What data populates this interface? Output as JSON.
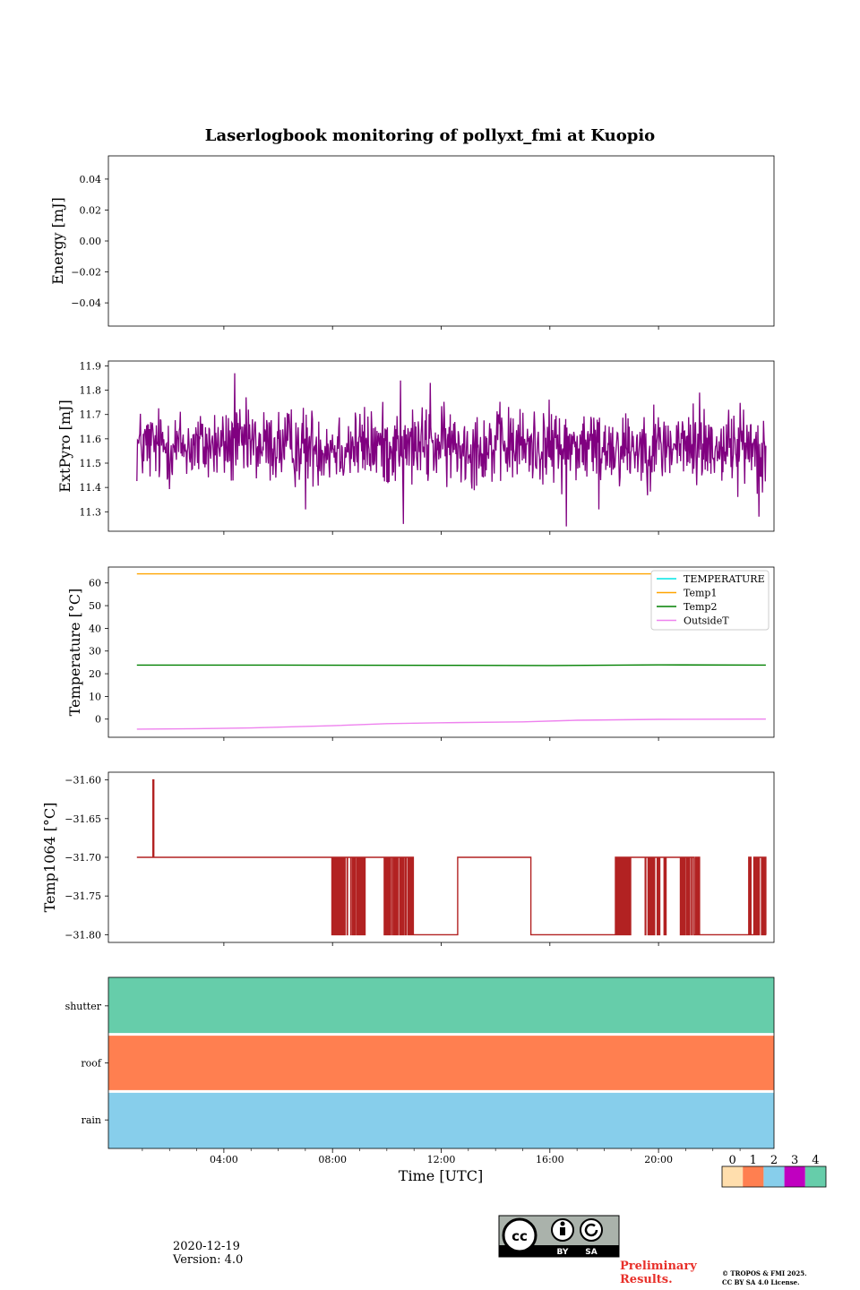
{
  "title": "Laserlogbook monitoring of pollyxt_fmi at Kuopio",
  "footer": {
    "date": "2020-12-19",
    "version": "Version: 4.0",
    "preliminary": "Preliminary",
    "results": "Results.",
    "copyright_line1": "© TROPOS & FMI 2025.",
    "copyright_line2": "CC BY SA 4.0 License.",
    "cc_badge": "CC BY SA",
    "cc_by": "BY",
    "cc_sa": "SA"
  },
  "chart_data": [
    {
      "id": "energy",
      "type": "line",
      "ylabel": "Energy [mJ]",
      "ylim": [
        -0.055,
        0.055
      ],
      "yticks": [
        0.04,
        0.02,
        0.0,
        -0.02,
        -0.04
      ],
      "ytick_labels": [
        "0.04",
        "0.02",
        "0.00",
        "−0.02",
        "−0.04"
      ],
      "series": []
    },
    {
      "id": "extpyro",
      "type": "line",
      "ylabel": "ExtPyro [mJ]",
      "ylim": [
        11.22,
        11.92
      ],
      "yticks": [
        11.9,
        11.8,
        11.7,
        11.6,
        11.5,
        11.4,
        11.3
      ],
      "ytick_labels": [
        "11.9",
        "11.8",
        "11.7",
        "11.6",
        "11.5",
        "11.4",
        "11.3"
      ],
      "series": [
        {
          "name": "ExtPyro",
          "color": "#800080",
          "mean": 11.57,
          "noise": 0.12,
          "x_range": [
            0.8,
            23.95
          ],
          "spikes": [
            [
              4.4,
              11.87
            ],
            [
              4.9,
              11.72
            ],
            [
              7.0,
              11.31
            ],
            [
              10.5,
              11.84
            ],
            [
              10.6,
              11.25
            ],
            [
              11.6,
              11.83
            ],
            [
              16.6,
              11.24
            ],
            [
              17.8,
              11.31
            ],
            [
              21.5,
              11.79
            ],
            [
              23.7,
              11.28
            ]
          ]
        }
      ]
    },
    {
      "id": "temperature",
      "type": "line",
      "ylabel": "Temperature [°C]",
      "ylim": [
        -8,
        67
      ],
      "yticks": [
        60,
        50,
        40,
        30,
        20,
        10,
        0
      ],
      "ytick_labels": [
        "60",
        "50",
        "40",
        "30",
        "20",
        "10",
        "0"
      ],
      "legend": "top-right",
      "series": [
        {
          "name": "TEMPERATURE",
          "color": "#00e5e5",
          "values": [],
          "x": []
        },
        {
          "name": "Temp1",
          "color": "#ffa500",
          "x": [
            0.8,
            23.95
          ],
          "values": [
            64,
            64
          ]
        },
        {
          "name": "Temp2",
          "color": "#008000",
          "x": [
            0.8,
            6,
            12,
            16,
            20,
            23.95
          ],
          "values": [
            23.8,
            23.8,
            23.7,
            23.6,
            23.9,
            23.8
          ]
        },
        {
          "name": "OutsideT",
          "color": "#ee82ee",
          "x": [
            0.8,
            3,
            5,
            8,
            10,
            12,
            15,
            17,
            20,
            23.95
          ],
          "values": [
            -4.4,
            -4.2,
            -3.9,
            -2.9,
            -2.0,
            -1.6,
            -1.2,
            -0.5,
            -0.1,
            0.0
          ]
        }
      ]
    },
    {
      "id": "temp1064",
      "type": "line",
      "ylabel": "Temp1064 [°C]",
      "ylim": [
        -31.81,
        -31.59
      ],
      "yticks": [
        -31.6,
        -31.65,
        -31.7,
        -31.75,
        -31.8
      ],
      "ytick_labels": [
        "−31.60",
        "−31.65",
        "−31.70",
        "−31.75",
        "−31.80"
      ],
      "series": [
        {
          "name": "Temp1064",
          "color": "#b22222",
          "base": -31.7,
          "low": -31.8,
          "spike": [
            1.4,
            -31.6
          ],
          "x_range": [
            0.8,
            23.95
          ],
          "low_segments": [
            [
              10.9,
              12.6
            ],
            [
              15.3,
              18.6
            ],
            [
              21.5,
              23.7
            ]
          ],
          "toggle_regions": [
            [
              7.95,
              9.2
            ],
            [
              9.9,
              10.5
            ],
            [
              10.5,
              11.0
            ],
            [
              18.4,
              19.0
            ],
            [
              19.5,
              20.3
            ],
            [
              20.8,
              21.5
            ],
            [
              23.3,
              23.95
            ]
          ]
        }
      ]
    },
    {
      "id": "status",
      "type": "heatmap",
      "rows": [
        "shutter",
        "roof",
        "rain"
      ],
      "row_values": [
        4,
        1,
        2
      ],
      "colorbar": {
        "ticks": [
          "0",
          "1",
          "2",
          "3",
          "4"
        ],
        "colors": [
          "#ffdead",
          "#ff7f50",
          "#87ceeb",
          "#c000c0",
          "#66cdaa"
        ]
      }
    }
  ],
  "x_axis": {
    "label": "Time [UTC]",
    "range": [
      -0.25,
      24.25
    ],
    "major_ticks": [
      4,
      8,
      12,
      16,
      20
    ],
    "major_labels": [
      "04:00",
      "08:00",
      "12:00",
      "16:00",
      "20:00"
    ],
    "minor_ticks": [
      1,
      2,
      3,
      5,
      6,
      7,
      9,
      10,
      11,
      13,
      14,
      15,
      17,
      18,
      19,
      21,
      22,
      23
    ]
  }
}
